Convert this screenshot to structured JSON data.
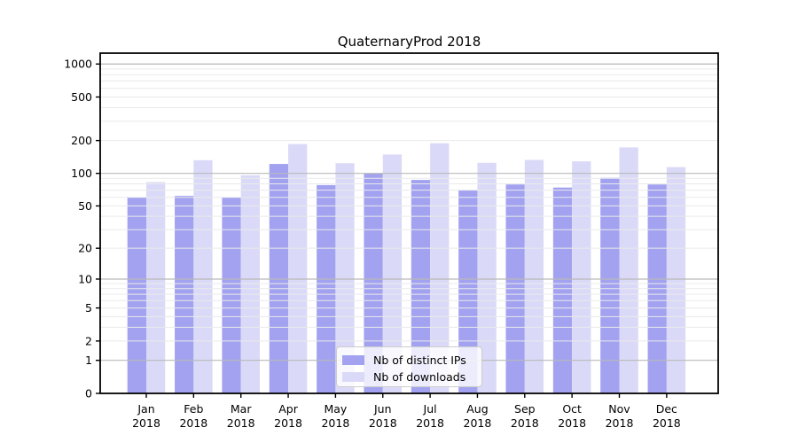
{
  "figure": {
    "background": "#ffffff",
    "text_color": "#000000"
  },
  "chart_data": {
    "type": "bar",
    "title": "QuaternaryProd 2018",
    "xlabel": "",
    "ylabel": "",
    "year_label": "2018",
    "categories": [
      "Jan",
      "Feb",
      "Mar",
      "Apr",
      "May",
      "Jun",
      "Jul",
      "Aug",
      "Sep",
      "Oct",
      "Nov",
      "Dec"
    ],
    "series": [
      {
        "name": "Nb of distinct IPs",
        "color": "#a2a2f0",
        "values": [
          60,
          62,
          60,
          122,
          78,
          100,
          87,
          70,
          79,
          74,
          91,
          79
        ]
      },
      {
        "name": "Nb of downloads",
        "color": "#dadaf8",
        "values": [
          83,
          132,
          96,
          186,
          124,
          149,
          189,
          125,
          133,
          129,
          173,
          114
        ]
      }
    ],
    "yscale": "symlog",
    "yticks": [
      0,
      1,
      2,
      5,
      10,
      20,
      50,
      100,
      200,
      500,
      1000
    ],
    "ylim": [
      0,
      1260
    ],
    "grid": {
      "on": true,
      "major_values": [
        1,
        10,
        100,
        1000
      ],
      "major_color": "#b9b9b9",
      "minor_color": "#eaeaea"
    },
    "legend_position": "lower center",
    "axis_color": "#000000"
  }
}
